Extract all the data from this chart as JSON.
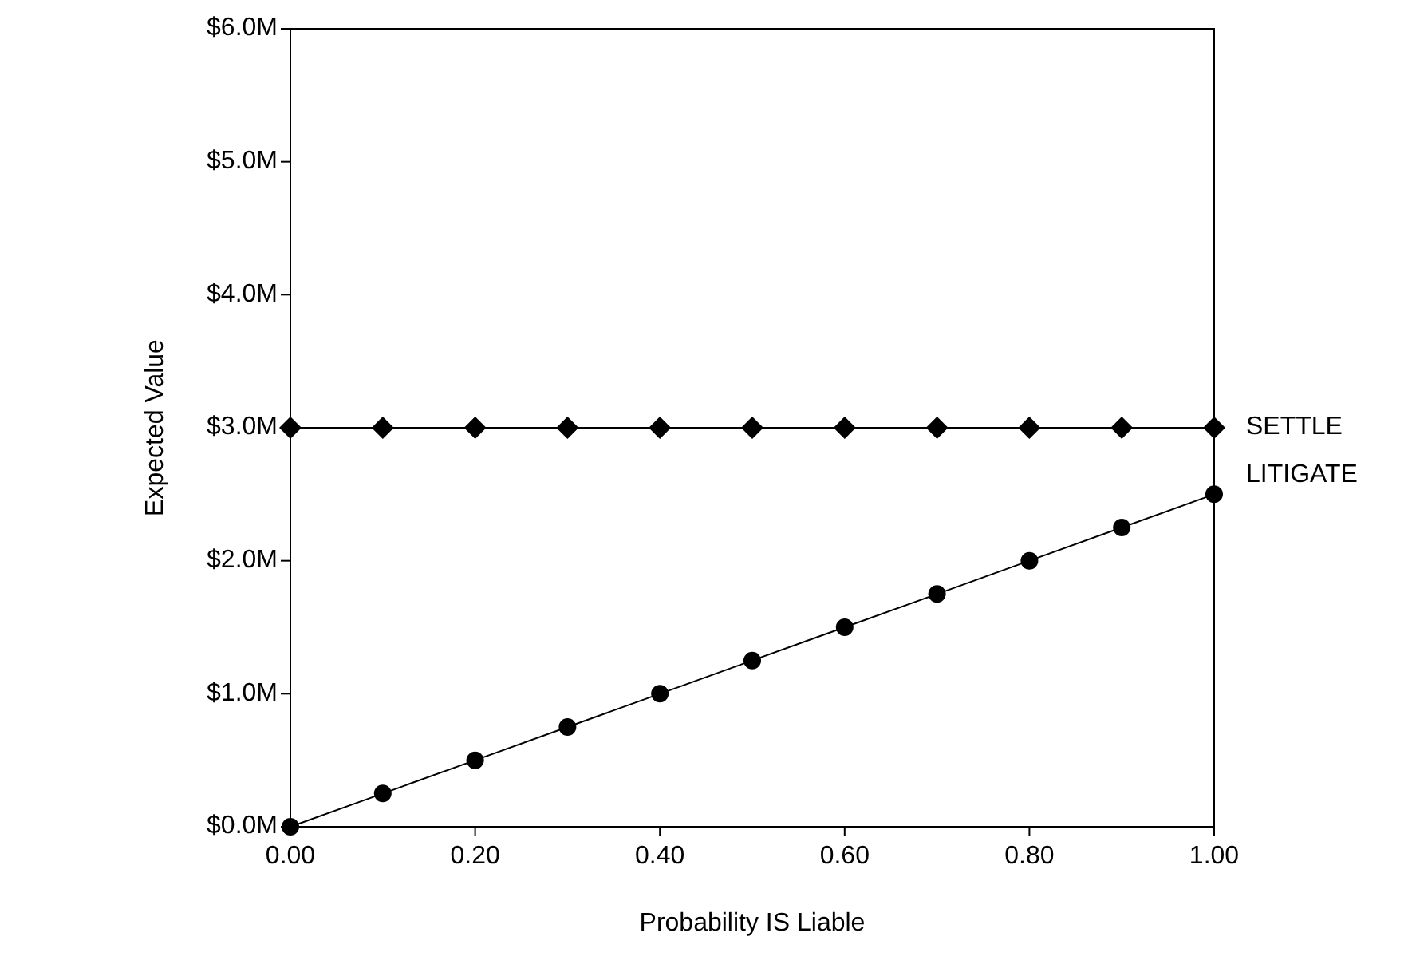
{
  "chart_data": {
    "type": "line",
    "xlabel": "Probability IS Liable",
    "ylabel": "Expected Value",
    "x": [
      0,
      0.1,
      0.2,
      0.3,
      0.4,
      0.5,
      0.6,
      0.7,
      0.8,
      0.9,
      1.0
    ],
    "series": [
      {
        "name": "SETTLE",
        "color": "#000000",
        "marker": "diamond",
        "values": [
          3,
          3,
          3,
          3,
          3,
          3,
          3,
          3,
          3,
          3,
          3
        ]
      },
      {
        "name": "LITIGATE",
        "color": "#000000",
        "marker": "circle",
        "values": [
          0,
          0.25,
          0.5,
          0.75,
          1.0,
          1.25,
          1.5,
          1.75,
          2.0,
          2.25,
          2.5
        ]
      }
    ],
    "xlim": [
      0,
      1
    ],
    "ylim": [
      0,
      6
    ],
    "xticks": [
      {
        "value": 0,
        "label": "0.00"
      },
      {
        "value": 0.2,
        "label": "0.20"
      },
      {
        "value": 0.4,
        "label": "0.40"
      },
      {
        "value": 0.6,
        "label": "0.60"
      },
      {
        "value": 0.8,
        "label": "0.80"
      },
      {
        "value": 1,
        "label": "1.00"
      }
    ],
    "yticks": [
      {
        "value": 0,
        "label": "$0.0M"
      },
      {
        "value": 1,
        "label": "$1.0M"
      },
      {
        "value": 2,
        "label": "$2.0M"
      },
      {
        "value": 3,
        "label": "$3.0M"
      },
      {
        "value": 4,
        "label": "$4.0M"
      },
      {
        "value": 5,
        "label": "$5.0M"
      },
      {
        "value": 6,
        "label": "$6.0M"
      }
    ],
    "grid": false,
    "legend": false,
    "line_style": "solid"
  }
}
